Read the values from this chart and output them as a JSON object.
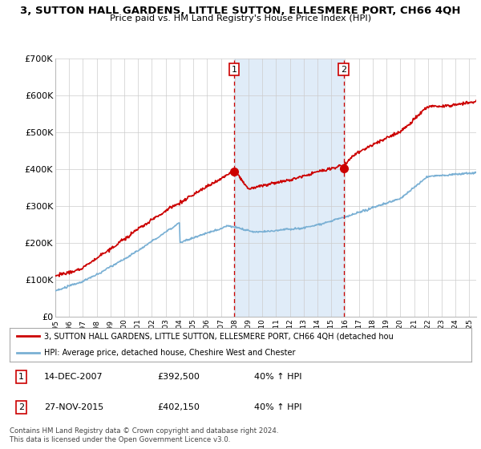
{
  "title": "3, SUTTON HALL GARDENS, LITTLE SUTTON, ELLESMERE PORT, CH66 4QH",
  "subtitle": "Price paid vs. HM Land Registry's House Price Index (HPI)",
  "ylim": [
    0,
    700000
  ],
  "yticks": [
    0,
    100000,
    200000,
    300000,
    400000,
    500000,
    600000,
    700000
  ],
  "ytick_labels": [
    "£0",
    "£100K",
    "£200K",
    "£300K",
    "£400K",
    "£500K",
    "£600K",
    "£700K"
  ],
  "sale1_year": 2007.95,
  "sale1_price": 392500,
  "sale2_year": 2015.9,
  "sale2_price": 402150,
  "red_line_color": "#cc0000",
  "blue_line_color": "#7ab0d4",
  "shade_color": "#e0ecf8",
  "grid_color": "#cccccc",
  "legend1_text": "3, SUTTON HALL GARDENS, LITTLE SUTTON, ELLESMERE PORT, CH66 4QH (detached hou",
  "legend2_text": "HPI: Average price, detached house, Cheshire West and Chester",
  "footer": "Contains HM Land Registry data © Crown copyright and database right 2024.\nThis data is licensed under the Open Government Licence v3.0."
}
